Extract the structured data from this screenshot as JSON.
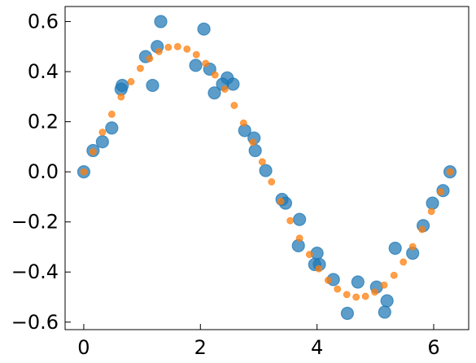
{
  "chart_data": {
    "type": "scatter",
    "title": "",
    "xlabel": "",
    "ylabel": "",
    "xlim": [
      -0.32,
      6.6
    ],
    "ylim": [
      -0.63,
      0.66
    ],
    "grid": false,
    "legend": "none",
    "x_ticks": [
      0,
      2,
      4,
      6
    ],
    "x_tick_labels": [
      "0",
      "2",
      "4",
      "6"
    ],
    "y_ticks": [
      -0.6,
      -0.4,
      -0.2,
      0.0,
      0.2,
      0.4,
      0.6
    ],
    "y_tick_labels": [
      "−0.6",
      "−0.4",
      "−0.2",
      "0.0",
      "0.2",
      "0.4",
      "0.6"
    ],
    "series": [
      {
        "color": "#1f77b4",
        "marker": "large-circle",
        "x": [
          0.0,
          0.16,
          0.32,
          0.48,
          0.64,
          0.66,
          1.06,
          1.18,
          1.26,
          1.32,
          1.92,
          2.06,
          2.16,
          2.24,
          2.38,
          2.46,
          2.56,
          2.76,
          2.92,
          2.94,
          3.12,
          3.4,
          3.46,
          3.68,
          3.7,
          3.96,
          4.0,
          4.04,
          4.28,
          4.52,
          4.7,
          5.02,
          5.16,
          5.2,
          5.34,
          5.64,
          5.82,
          5.98,
          6.16,
          6.28
        ],
        "y": [
          0.0,
          0.085,
          0.12,
          0.175,
          0.33,
          0.345,
          0.46,
          0.345,
          0.5,
          0.6,
          0.425,
          0.57,
          0.41,
          0.315,
          0.35,
          0.375,
          0.35,
          0.165,
          0.135,
          0.085,
          0.005,
          -0.11,
          -0.125,
          -0.295,
          -0.19,
          -0.37,
          -0.325,
          -0.37,
          -0.43,
          -0.565,
          -0.44,
          -0.46,
          -0.56,
          -0.515,
          -0.305,
          -0.325,
          -0.215,
          -0.125,
          -0.075,
          0.0
        ]
      },
      {
        "color": "#ff7f0e",
        "marker": "small-circle",
        "x": [
          0.0,
          0.16,
          0.32,
          0.48,
          0.64,
          0.81,
          0.97,
          1.13,
          1.29,
          1.45,
          1.61,
          1.77,
          1.93,
          2.09,
          2.25,
          2.42,
          2.58,
          2.74,
          2.9,
          3.06,
          3.22,
          3.38,
          3.54,
          3.7,
          3.87,
          4.03,
          4.19,
          4.35,
          4.51,
          4.67,
          4.83,
          4.99,
          5.15,
          5.32,
          5.48,
          5.64,
          5.8,
          5.96,
          6.12,
          6.28
        ],
        "y": [
          0.0,
          0.08,
          0.158,
          0.23,
          0.299,
          0.36,
          0.413,
          0.452,
          0.48,
          0.497,
          0.5,
          0.49,
          0.468,
          0.433,
          0.387,
          0.33,
          0.265,
          0.195,
          0.118,
          0.04,
          -0.04,
          -0.118,
          -0.195,
          -0.265,
          -0.33,
          -0.387,
          -0.433,
          -0.468,
          -0.49,
          -0.5,
          -0.497,
          -0.48,
          -0.452,
          -0.413,
          -0.36,
          -0.299,
          -0.23,
          -0.158,
          -0.08,
          0.0
        ]
      }
    ]
  }
}
